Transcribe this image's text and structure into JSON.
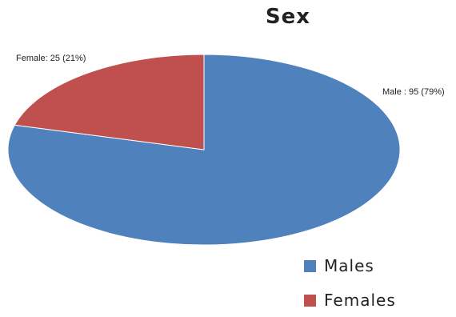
{
  "chart_data": {
    "type": "pie",
    "title": "Sex",
    "slices": [
      {
        "name": "Males",
        "label": "Male : 95 (79%)",
        "value": 95,
        "percent": 79,
        "color": "#4f81bd"
      },
      {
        "name": "Females",
        "label": "Female: 25 (21%)",
        "value": 25,
        "percent": 21,
        "color": "#c0504d"
      }
    ],
    "legend": {
      "position": "bottom-right",
      "entries": [
        "Males",
        "Females"
      ]
    }
  }
}
